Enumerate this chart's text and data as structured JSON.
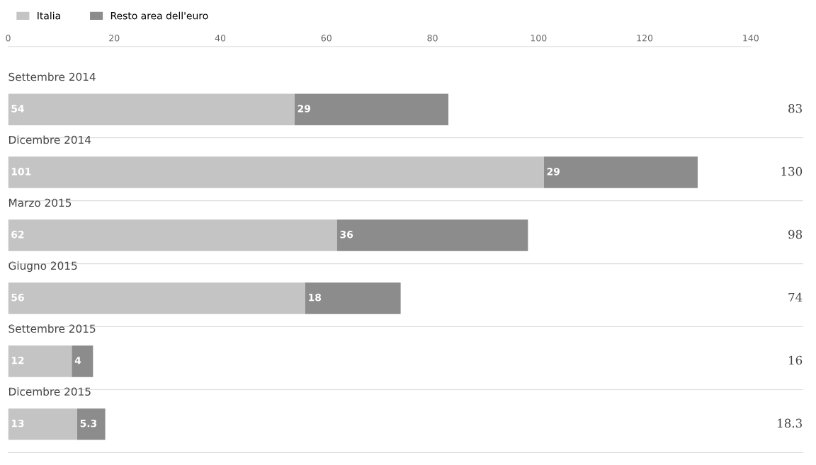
{
  "chart_data": {
    "type": "bar",
    "orientation": "horizontal",
    "stacked": true,
    "legend": "top left",
    "grid": false,
    "categories": [
      "Settembre 2014",
      "Dicembre 2014",
      "Marzo 2015",
      "Giugno 2015",
      "Settembre 2015",
      "Dicembre 2015"
    ],
    "series": [
      {
        "name": "Italia",
        "color": "#c4c4c4",
        "values": [
          54,
          101,
          62,
          56,
          12,
          13
        ],
        "value_labels": [
          "54",
          "101",
          "62",
          "56",
          "12",
          "13"
        ]
      },
      {
        "name": "Resto area dell'euro",
        "color": "#8c8c8c",
        "values": [
          29,
          29,
          36,
          18,
          4,
          5.3
        ],
        "value_labels": [
          "29",
          "29",
          "36",
          "18",
          "4",
          "5.3"
        ]
      }
    ],
    "annotations": [
      "83",
      "130",
      "98",
      "74",
      "16",
      "18.3"
    ],
    "xlim": [
      0,
      140
    ],
    "xticks": [
      0,
      20,
      40,
      60,
      80,
      100,
      120,
      140
    ]
  }
}
